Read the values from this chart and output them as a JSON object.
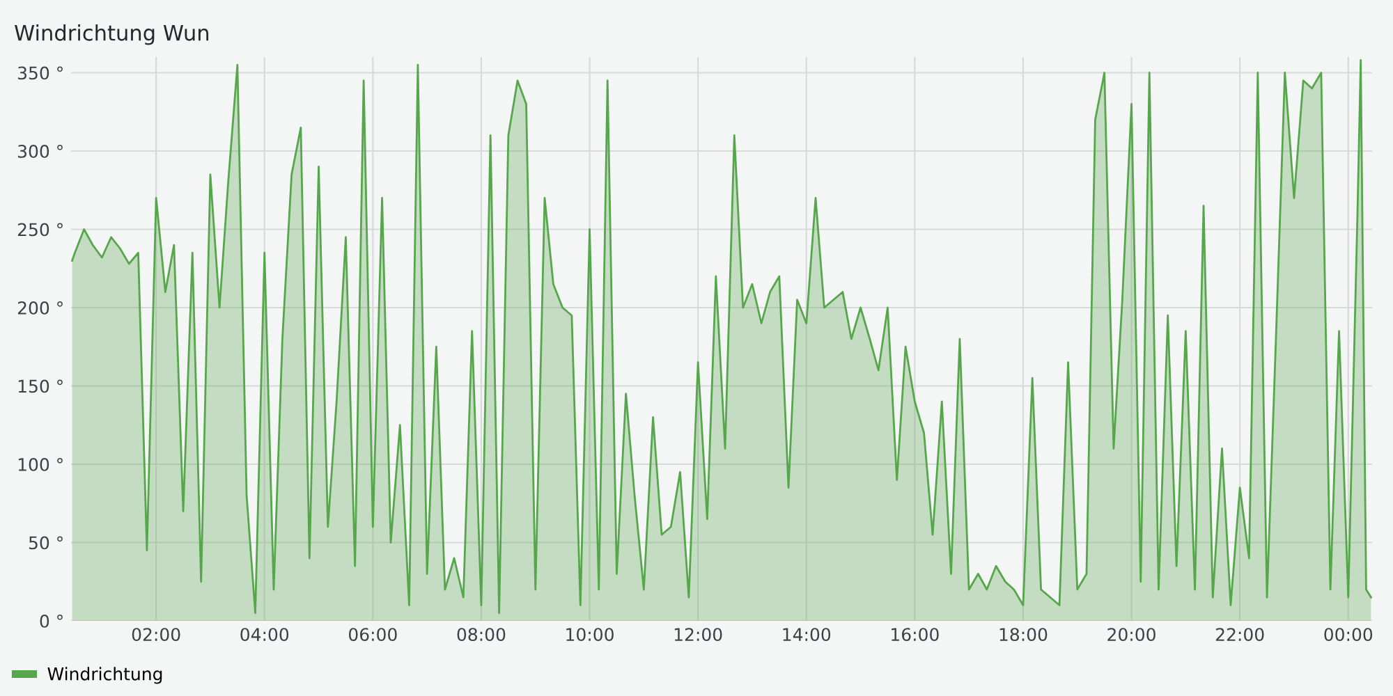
{
  "chart_data": {
    "type": "area",
    "title": "Windrichtung Wun",
    "legend": "bottom left",
    "grid": true,
    "x": [
      0.45,
      0.5,
      0.67,
      0.83,
      1.0,
      1.17,
      1.33,
      1.5,
      1.67,
      1.83,
      2.0,
      2.17,
      2.33,
      2.5,
      2.67,
      2.83,
      3.0,
      3.17,
      3.33,
      3.5,
      3.67,
      3.83,
      4.0,
      4.17,
      4.33,
      4.5,
      4.67,
      4.83,
      5.0,
      5.17,
      5.33,
      5.5,
      5.67,
      5.83,
      6.0,
      6.17,
      6.33,
      6.5,
      6.67,
      6.83,
      7.0,
      7.17,
      7.33,
      7.5,
      7.67,
      7.83,
      8.0,
      8.17,
      8.33,
      8.5,
      8.67,
      8.83,
      9.0,
      9.17,
      9.33,
      9.5,
      9.67,
      9.83,
      10.0,
      10.17,
      10.33,
      10.5,
      10.67,
      10.83,
      11.0,
      11.17,
      11.33,
      11.5,
      11.67,
      11.83,
      12.0,
      12.17,
      12.33,
      12.5,
      12.67,
      12.83,
      13.0,
      13.17,
      13.33,
      13.5,
      13.67,
      13.83,
      14.0,
      14.17,
      14.33,
      14.5,
      14.67,
      14.83,
      15.0,
      15.17,
      15.33,
      15.5,
      15.67,
      15.83,
      16.0,
      16.17,
      16.33,
      16.5,
      16.67,
      16.83,
      17.0,
      17.17,
      17.33,
      17.5,
      17.67,
      17.83,
      18.0,
      18.17,
      18.33,
      18.5,
      18.67,
      18.83,
      19.0,
      19.17,
      19.33,
      19.5,
      19.67,
      19.83,
      20.0,
      20.17,
      20.33,
      20.5,
      20.67,
      20.83,
      21.0,
      21.17,
      21.33,
      21.5,
      21.67,
      21.83,
      22.0,
      22.17,
      22.33,
      22.5,
      22.67,
      22.83,
      23.0,
      23.17,
      23.33,
      23.5,
      23.67,
      23.83,
      24.0,
      24.17,
      24.23,
      24.33,
      24.42
    ],
    "series": [
      {
        "name": "Windrichtung",
        "color": "#56a64b",
        "values": [
          230,
          235,
          250,
          240,
          232,
          245,
          238,
          228,
          235,
          45,
          270,
          210,
          240,
          70,
          235,
          25,
          285,
          200,
          280,
          355,
          80,
          5,
          235,
          20,
          180,
          285,
          315,
          40,
          290,
          60,
          140,
          245,
          35,
          345,
          60,
          270,
          50,
          125,
          10,
          355,
          30,
          175,
          20,
          40,
          15,
          185,
          10,
          310,
          5,
          310,
          345,
          330,
          20,
          270,
          215,
          200,
          195,
          10,
          250,
          20,
          345,
          30,
          145,
          80,
          20,
          130,
          55,
          60,
          95,
          15,
          165,
          65,
          220,
          110,
          310,
          200,
          215,
          190,
          210,
          220,
          85,
          205,
          190,
          270,
          200,
          205,
          210,
          180,
          200,
          180,
          160,
          200,
          90,
          175,
          140,
          120,
          55,
          140,
          30,
          180,
          20,
          30,
          20,
          35,
          25,
          20,
          10,
          155,
          20,
          15,
          10,
          165,
          20,
          30,
          320,
          350,
          110,
          205,
          330,
          25,
          350,
          20,
          195,
          35,
          185,
          20,
          265,
          15,
          110,
          10,
          85,
          40,
          350,
          15,
          185,
          350,
          270,
          345,
          340,
          350,
          20,
          185,
          15,
          260,
          358,
          20,
          15
        ]
      }
    ],
    "xlim": [
      0.43,
      24.44
    ],
    "xticks": [
      {
        "value": 2,
        "label": "02:00"
      },
      {
        "value": 4,
        "label": "04:00"
      },
      {
        "value": 6,
        "label": "06:00"
      },
      {
        "value": 8,
        "label": "08:00"
      },
      {
        "value": 10,
        "label": "10:00"
      },
      {
        "value": 12,
        "label": "12:00"
      },
      {
        "value": 14,
        "label": "14:00"
      },
      {
        "value": 16,
        "label": "16:00"
      },
      {
        "value": 18,
        "label": "18:00"
      },
      {
        "value": 20,
        "label": "20:00"
      },
      {
        "value": 22,
        "label": "22:00"
      },
      {
        "value": 24,
        "label": "00:00"
      }
    ],
    "ylim": [
      0,
      360
    ],
    "yticks": [
      {
        "value": 0,
        "label": "0 °"
      },
      {
        "value": 50,
        "label": "50 °"
      },
      {
        "value": 100,
        "label": "100 °"
      },
      {
        "value": 150,
        "label": "150 °"
      },
      {
        "value": 200,
        "label": "200 °"
      },
      {
        "value": 250,
        "label": "250 °"
      },
      {
        "value": 300,
        "label": "300 °"
      },
      {
        "value": 350,
        "label": "350 °"
      }
    ],
    "marker": "none",
    "line_style": "solid"
  }
}
